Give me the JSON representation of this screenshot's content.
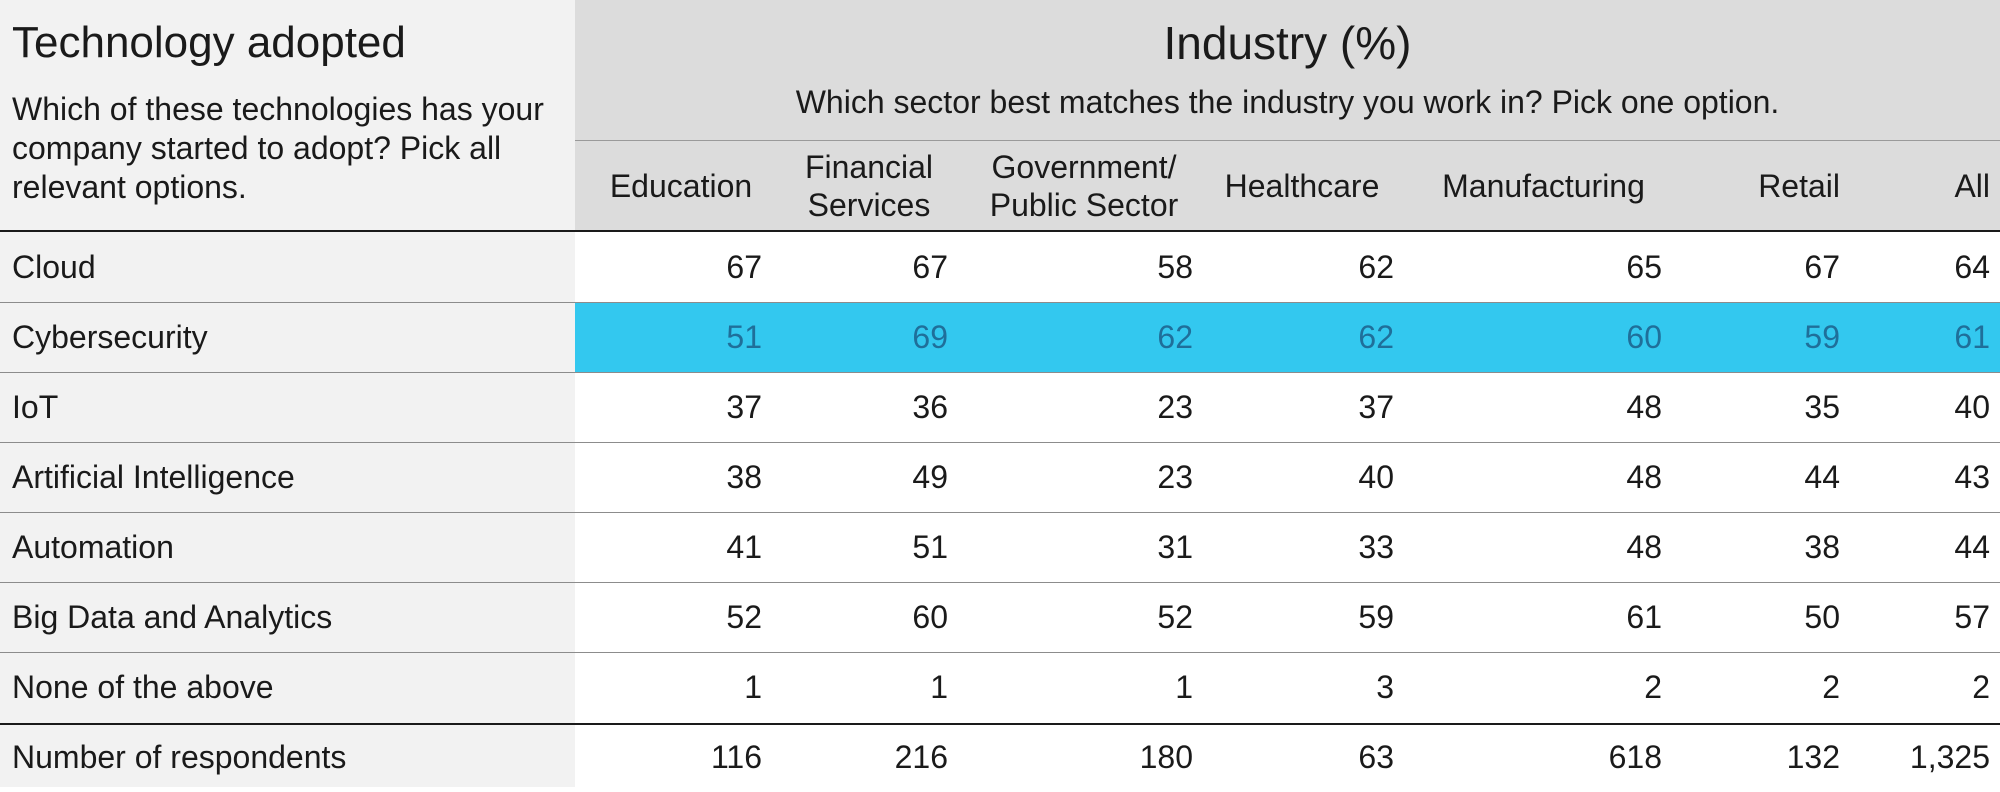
{
  "chart_data": {
    "type": "table",
    "row_header": {
      "title": "Technology adopted",
      "question": "Which of these technologies has your company started to adopt? Pick all relevant options."
    },
    "column_group": {
      "title": "Industry (%)",
      "question": "Which sector best matches the industry you work in? Pick one option."
    },
    "columns": [
      {
        "line1": "Education",
        "line2": ""
      },
      {
        "line1": "Financial",
        "line2": "Services"
      },
      {
        "line1": "Government/",
        "line2": "Public Sector"
      },
      {
        "line1": "Healthcare",
        "line2": ""
      },
      {
        "line1": "Manufacturing",
        "line2": ""
      },
      {
        "line1": "Retail",
        "line2": ""
      },
      {
        "line1": "All",
        "line2": ""
      }
    ],
    "rows": [
      {
        "label": "Cloud",
        "values": [
          "67",
          "67",
          "58",
          "62",
          "65",
          "67",
          "64"
        ]
      },
      {
        "label": "Cybersecurity",
        "values": [
          "51",
          "69",
          "62",
          "62",
          "60",
          "59",
          "61"
        ],
        "highlight": true
      },
      {
        "label": "IoT",
        "values": [
          "37",
          "36",
          "23",
          "37",
          "48",
          "35",
          "40"
        ]
      },
      {
        "label": "Artificial Intelligence",
        "values": [
          "38",
          "49",
          "23",
          "40",
          "48",
          "44",
          "43"
        ]
      },
      {
        "label": "Automation",
        "values": [
          "41",
          "51",
          "31",
          "33",
          "48",
          "38",
          "44"
        ]
      },
      {
        "label": "Big Data and Analytics",
        "values": [
          "52",
          "60",
          "52",
          "59",
          "61",
          "50",
          "57"
        ]
      },
      {
        "label": "None of the above",
        "values": [
          "1",
          "1",
          "1",
          "3",
          "2",
          "2",
          "2"
        ]
      }
    ],
    "footer_row": {
      "label": "Number of respondents",
      "values": [
        "116",
        "216",
        "180",
        "63",
        "618",
        "132",
        "1,325"
      ]
    },
    "colors": {
      "header_bg": "#dcdcdc",
      "row_label_bg": "#f2f2f2",
      "highlight": "#33c8ef",
      "highlight_text": "#1f6f9a"
    }
  }
}
